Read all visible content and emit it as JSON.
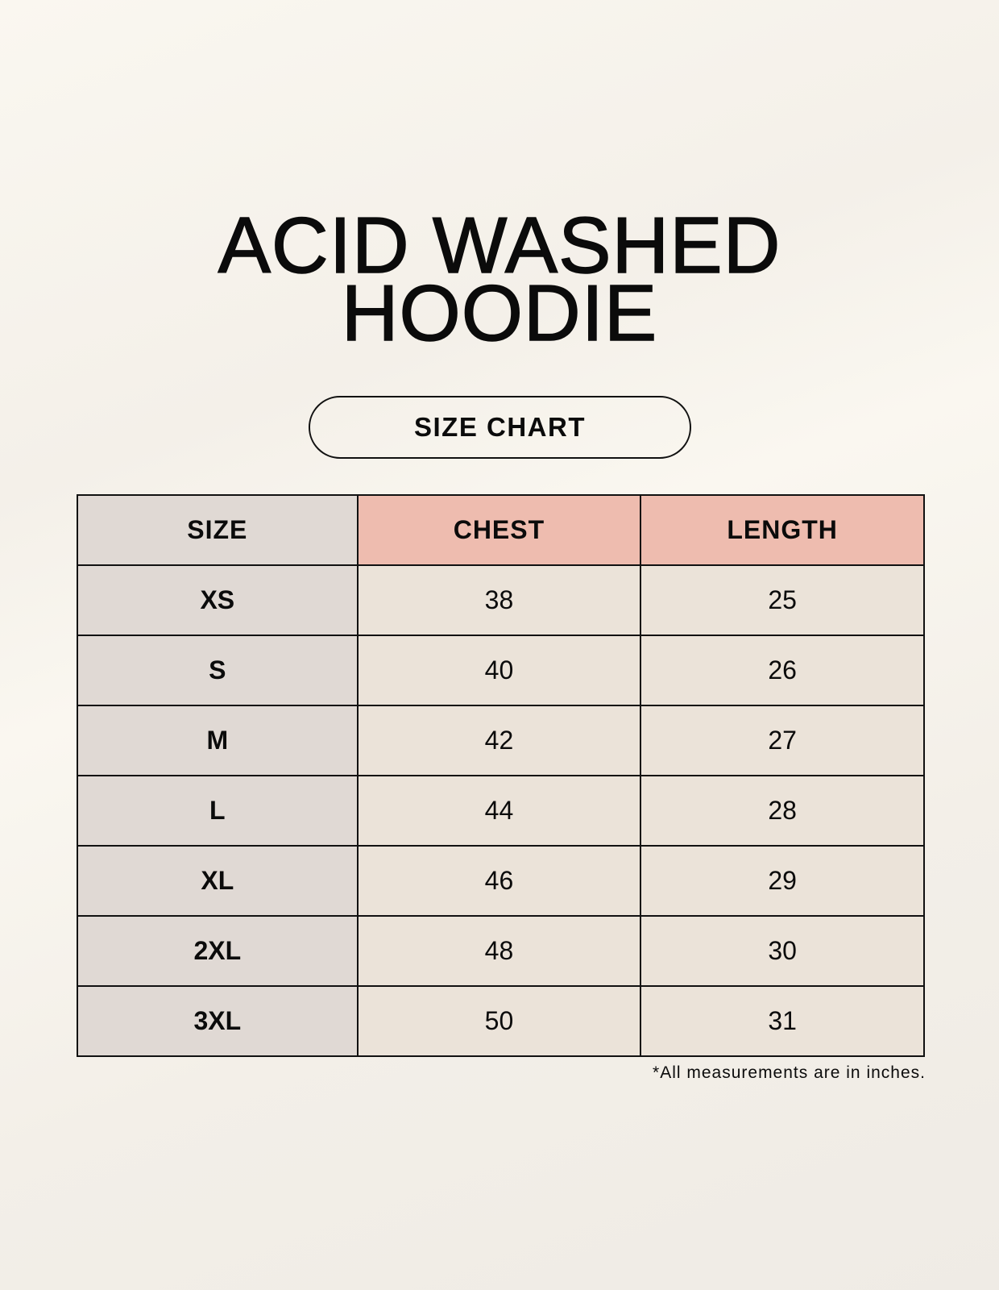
{
  "title": {
    "line1": "ACID WASHED",
    "line2": "HOODIE"
  },
  "badge": "SIZE CHART",
  "table": {
    "headers": [
      "SIZE",
      "CHEST",
      "LENGTH"
    ],
    "rows": [
      [
        "XS",
        "38",
        "25"
      ],
      [
        "S",
        "40",
        "26"
      ],
      [
        "M",
        "42",
        "27"
      ],
      [
        "L",
        "44",
        "28"
      ],
      [
        "XL",
        "46",
        "29"
      ],
      [
        "2XL",
        "48",
        "30"
      ],
      [
        "3XL",
        "50",
        "31"
      ]
    ]
  },
  "note": "*All measurements are in inches.",
  "colors": {
    "size_column": "#e0d9d4",
    "header_accent": "#eebcaf",
    "cells": "#ebe3d9"
  }
}
